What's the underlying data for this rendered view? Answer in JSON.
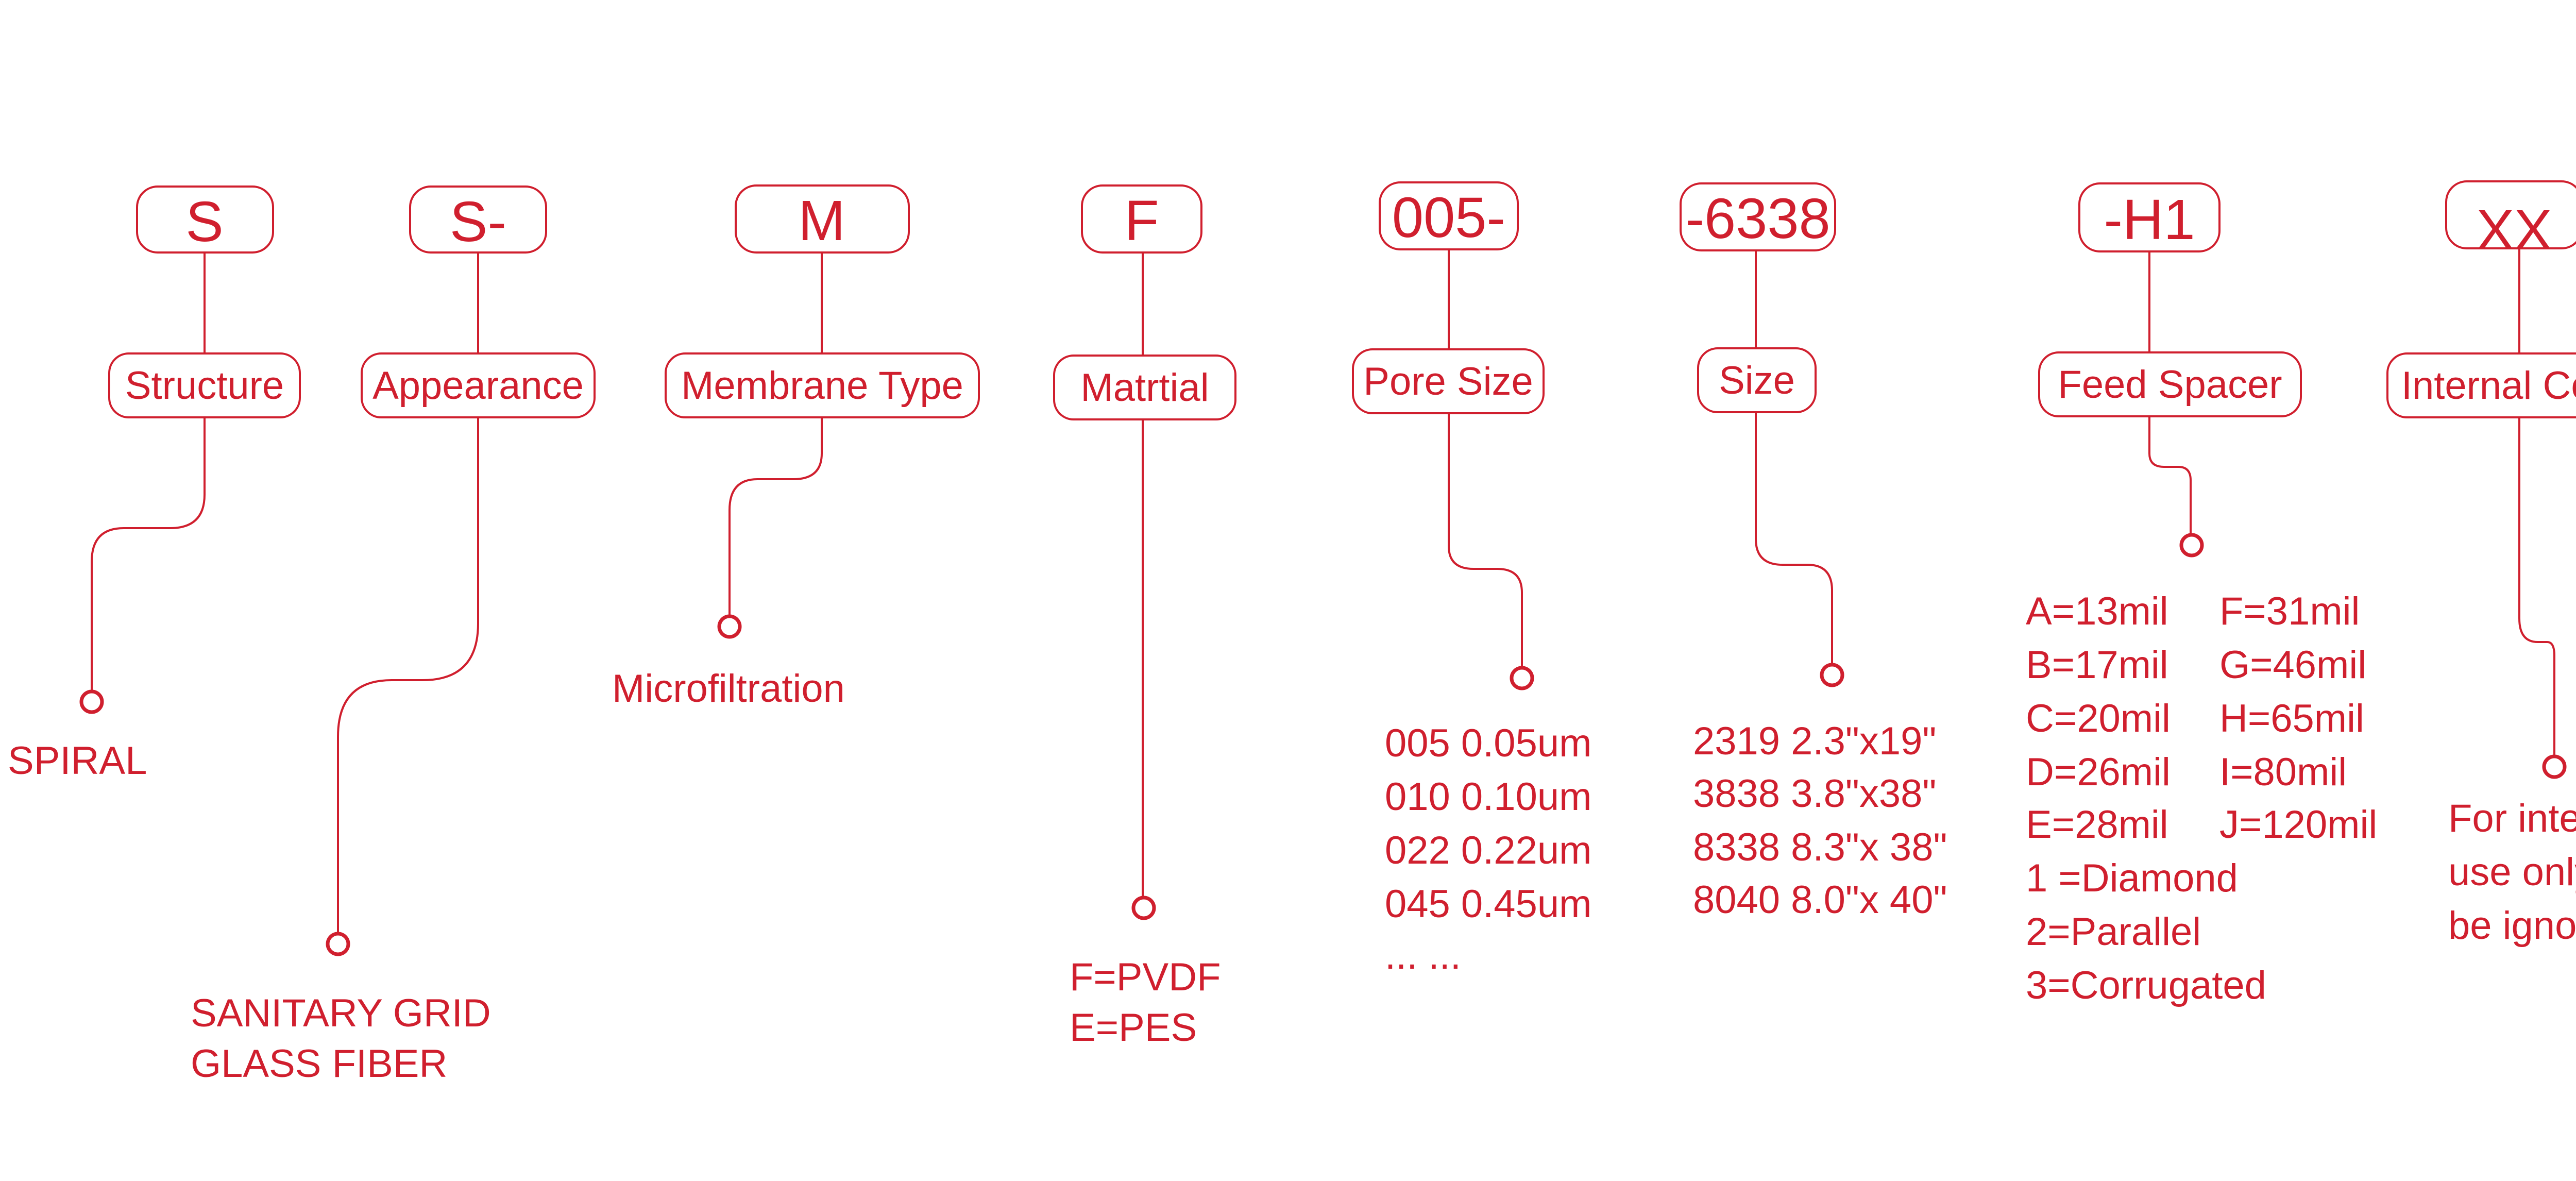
{
  "accent_color": "#d01f2e",
  "segments": [
    {
      "id": "structure",
      "code": "S",
      "label": "Structure",
      "desc": [
        "SPIRAL"
      ]
    },
    {
      "id": "appearance",
      "code": "S-",
      "label": "Appearance",
      "desc": [
        "SANITARY GRID",
        "GLASS FIBER"
      ]
    },
    {
      "id": "membrane-type",
      "code": "M",
      "label": "Membrane Type",
      "desc": [
        "Microfiltration"
      ]
    },
    {
      "id": "material",
      "code": "F",
      "label": "Matrtial",
      "desc": [
        "F=PVDF",
        "E=PES"
      ]
    },
    {
      "id": "pore-size",
      "code": "005-",
      "label": "Pore Size",
      "desc": [
        "005 0.05um",
        "010 0.10um",
        "022 0.22um",
        "045 0.45um",
        "... ..."
      ]
    },
    {
      "id": "size",
      "code": "-6338",
      "label": "Size",
      "desc": [
        "2319 2.3\"x19\"",
        "3838 3.8\"x38\"",
        "8338 8.3\"x 38\"",
        "8040 8.0\"x 40\""
      ]
    },
    {
      "id": "feed-spacer",
      "code": "-H1",
      "label": "Feed Spacer",
      "desc_left": [
        "A=13mil",
        "B=17mil",
        "C=20mil",
        "D=26mil",
        "E=28mil",
        "1 =Diamond",
        "2=Parallel",
        "3=Corrugated"
      ],
      "desc_right": [
        "F=31mil",
        "G=46mil",
        "H=65mil",
        "I=80mil",
        "J=120mil"
      ]
    },
    {
      "id": "internal-code",
      "code": "XX",
      "label": "Internal Code",
      "desc": [
        "For internal",
        "use only,can",
        "be ignoed"
      ]
    }
  ]
}
